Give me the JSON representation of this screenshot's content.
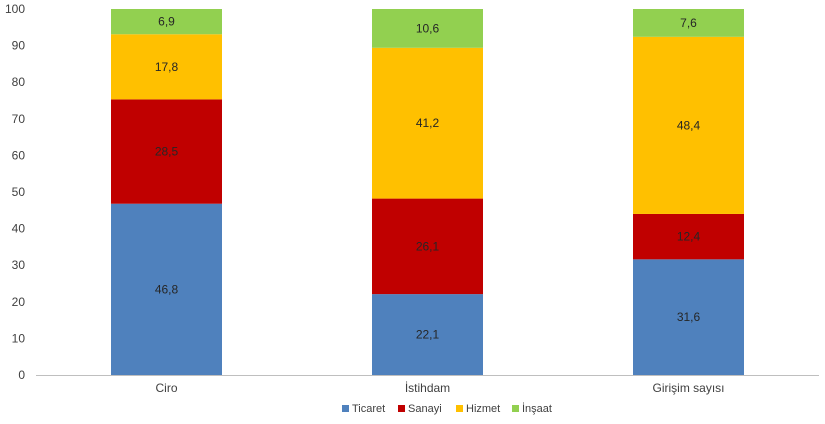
{
  "chart_data": {
    "type": "bar",
    "stacked": true,
    "categories": [
      "Ciro",
      "İstihdam",
      "Girişim sayısı"
    ],
    "series": [
      {
        "name": "Ticaret",
        "color": "#4F81BD",
        "values": [
          46.8,
          22.1,
          31.6
        ],
        "labels": [
          "46,8",
          "22,1",
          "31,6"
        ]
      },
      {
        "name": "Sanayi",
        "color": "#C00000",
        "values": [
          28.5,
          26.1,
          12.4
        ],
        "labels": [
          "28,5",
          "26,1",
          "12,4"
        ]
      },
      {
        "name": "Hizmet",
        "color": "#FFC000",
        "values": [
          17.8,
          41.2,
          48.4
        ],
        "labels": [
          "17,8",
          "41,2",
          "48,4"
        ]
      },
      {
        "name": "İnşaat",
        "color": "#92D050",
        "values": [
          6.9,
          10.6,
          7.6
        ],
        "labels": [
          "6,9",
          "10,6",
          "7,6"
        ]
      }
    ],
    "ylim": [
      0,
      100
    ],
    "yticks": [
      0,
      10,
      20,
      30,
      40,
      50,
      60,
      70,
      80,
      90,
      100
    ],
    "grid": false,
    "legend_position": "bottom",
    "title": "",
    "xlabel": "",
    "ylabel": ""
  }
}
